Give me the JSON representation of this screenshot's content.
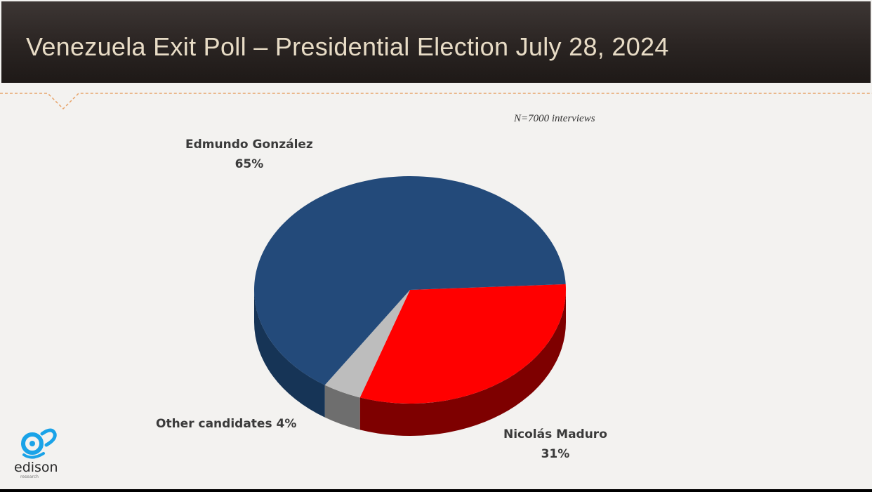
{
  "header": {
    "title": "Venezuela Exit Poll – Presidential Election July 28, 2024"
  },
  "note": "N=7000 interviews",
  "logo": {
    "name": "edison",
    "sub": "research"
  },
  "colors": {
    "header_bg": "#2a2422",
    "title_text": "#e8dcc6",
    "divider": "#e8a46a",
    "gonzalez": "#234a7a",
    "maduro": "#ff0000",
    "other": "#bdbdbd",
    "logo": "#1aa3e8"
  },
  "chart_data": {
    "type": "pie",
    "title": "",
    "slices": [
      {
        "label": "Edmundo González",
        "value": 65,
        "value_label": "65%",
        "color": "#234a7a",
        "side": "#163456"
      },
      {
        "label": "Nicolás Maduro",
        "value": 31,
        "value_label": "31%",
        "color": "#ff0000",
        "side": "#7e0000"
      },
      {
        "label": "Other candidates",
        "value": 4,
        "value_label": "4%",
        "color": "#bdbdbd",
        "side": "#6e6e6e"
      }
    ],
    "labels": {
      "gonzalez_name": "Edmundo González",
      "gonzalez_value": "65%",
      "maduro_name": "Nicolás Maduro",
      "maduro_value": "31%",
      "other": "Other candidates 4%"
    },
    "legend": "none",
    "style": "3d"
  }
}
